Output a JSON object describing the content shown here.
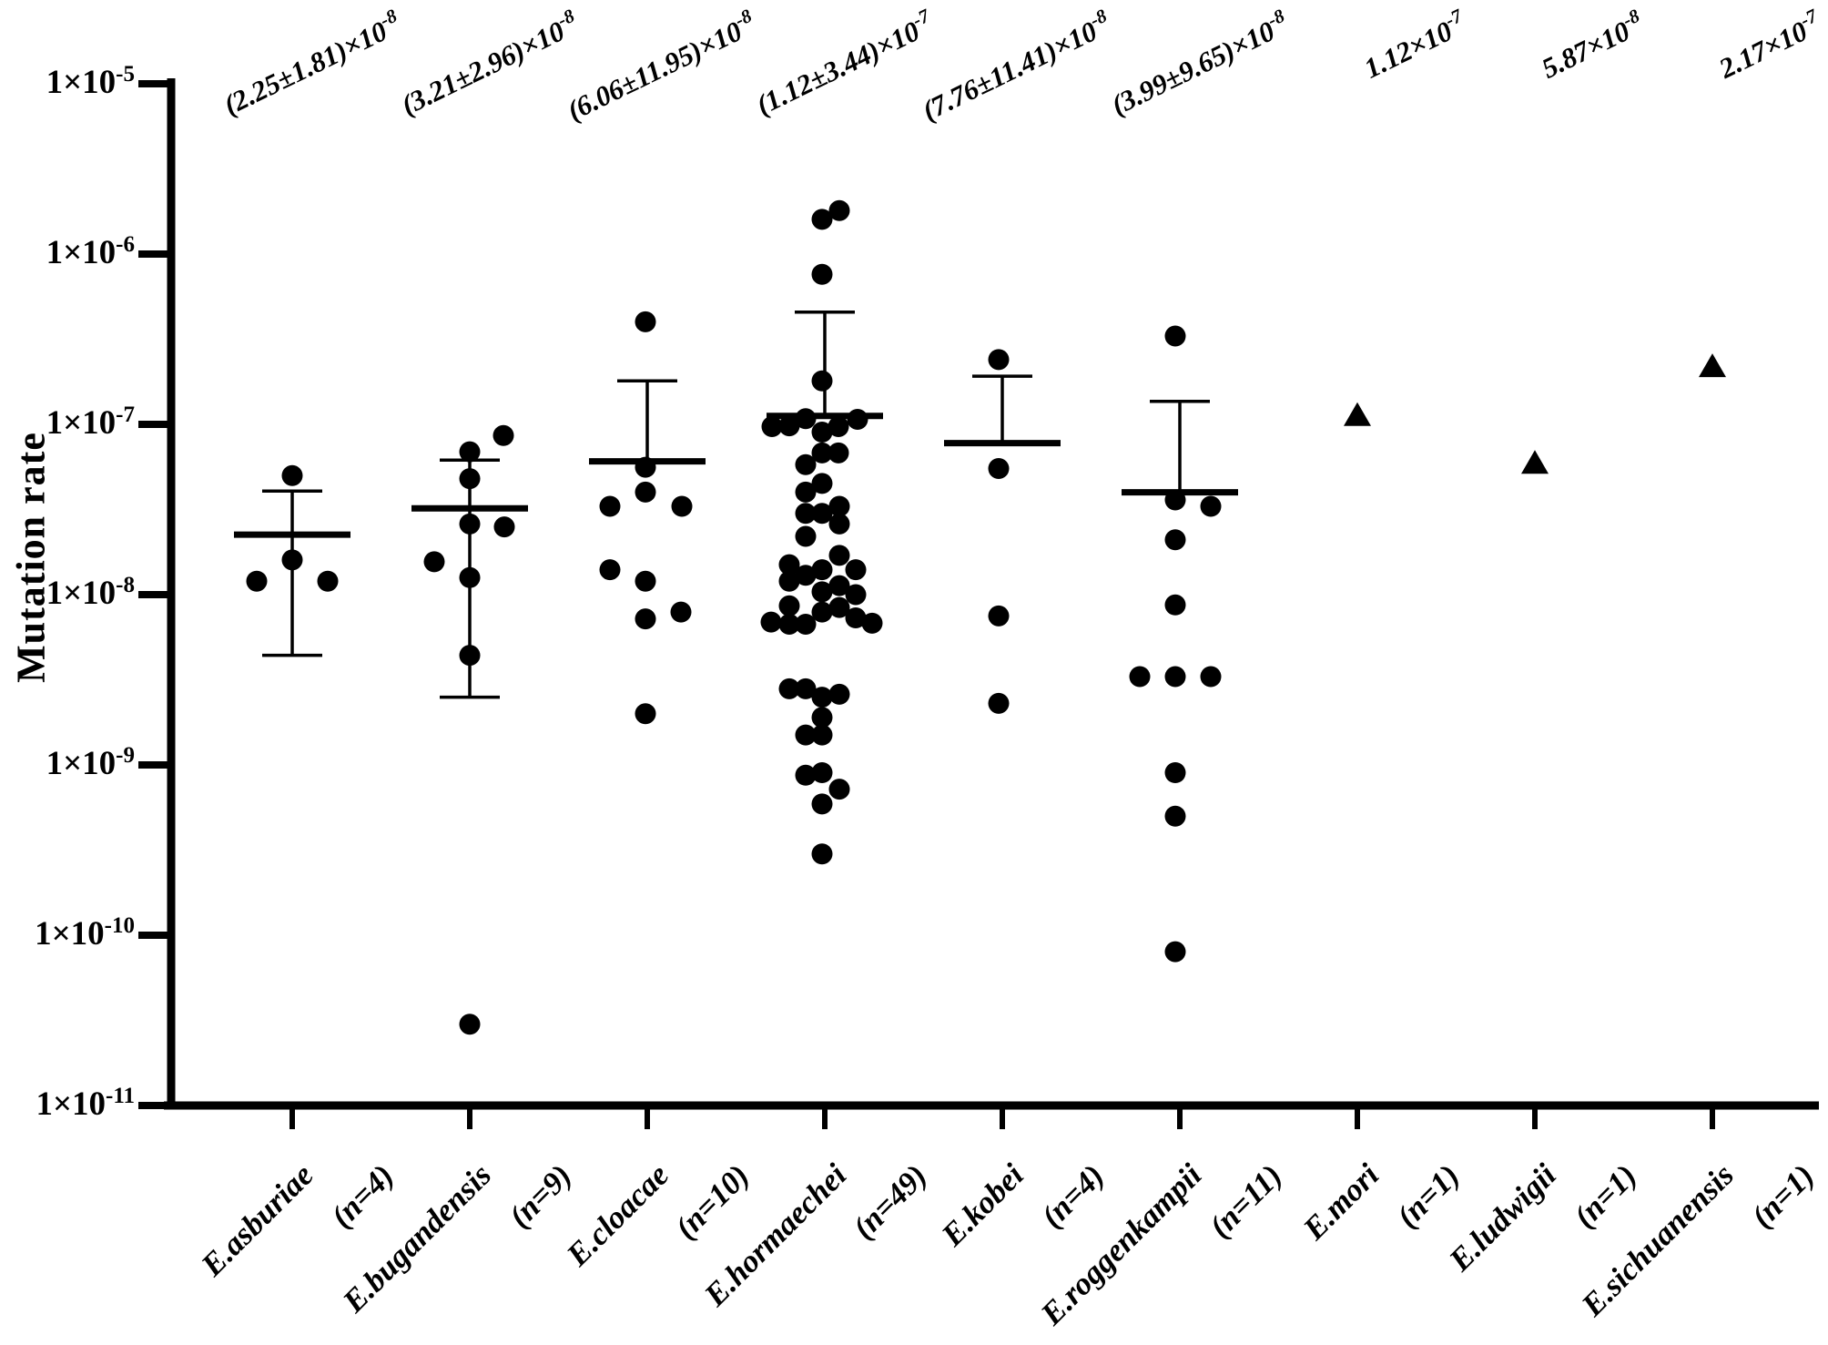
{
  "figure": {
    "background": "#ffffff",
    "ink_color": "#000000"
  },
  "chart_data": {
    "type": "scatter",
    "title": "",
    "xlabel": "",
    "ylabel": "Mutation rate",
    "y_scale": "log",
    "ylim": [
      1e-11,
      1e-05
    ],
    "grid": false,
    "legend": "none",
    "y_tick_base": "1×10",
    "y_tick_exponents": [
      "-5",
      "-6",
      "-7",
      "-8",
      "-9",
      "-10",
      "-11"
    ],
    "series": [
      {
        "name": "E.asburiae",
        "n_label": "(n=4)",
        "n": 4,
        "marker": "circle",
        "annotation_base": "(2.25±1.81)×10",
        "annotation_exp": "-8",
        "mean": 2.25e-08,
        "sd": 1.81e-08,
        "points": [
          [
            5e-08,
            0
          ],
          [
            1.6e-08,
            0
          ],
          [
            1.2e-08,
            -39
          ],
          [
            1.2e-08,
            39
          ]
        ]
      },
      {
        "name": "E.bugandensis",
        "n_label": "(n=9)",
        "n": 9,
        "marker": "circle",
        "annotation_base": "(3.21±2.96)×10",
        "annotation_exp": "-8",
        "mean": 3.21e-08,
        "sd": 2.96e-08,
        "points": [
          [
            8.6e-08,
            37
          ],
          [
            6.9e-08,
            0
          ],
          [
            4.8e-08,
            0
          ],
          [
            2.6e-08,
            0
          ],
          [
            2.5e-08,
            38
          ],
          [
            1.56e-08,
            -39
          ],
          [
            1.26e-08,
            0
          ],
          [
            4.4e-09,
            0
          ],
          [
            3e-11,
            0
          ]
        ]
      },
      {
        "name": "E.cloacae",
        "n_label": "(n=10)",
        "n": 10,
        "marker": "circle",
        "annotation_base": "(6.06±11.95)×10",
        "annotation_exp": "-8",
        "mean": 6.06e-08,
        "sd": 1.195e-07,
        "points": [
          [
            4e-07,
            -2
          ],
          [
            5.6e-08,
            -2
          ],
          [
            4e-08,
            -2
          ],
          [
            3.3e-08,
            -41
          ],
          [
            3.3e-08,
            38
          ],
          [
            1.4e-08,
            -41
          ],
          [
            1.2e-08,
            -2
          ],
          [
            7.9e-09,
            37
          ],
          [
            7.2e-09,
            -2
          ],
          [
            2e-09,
            -2
          ]
        ]
      },
      {
        "name": "E.hormaechei",
        "n_label": "(n=49)",
        "n": 49,
        "marker": "circle",
        "annotation_base": "(1.12±3.44)×10",
        "annotation_exp": "-7",
        "mean": 1.12e-07,
        "sd": 3.44e-07,
        "points": [
          [
            1.8e-06,
            16
          ],
          [
            1.6e-06,
            -3
          ],
          [
            7.6e-07,
            -3
          ],
          [
            1.8e-07,
            -3
          ],
          [
            1.08e-07,
            -21
          ],
          [
            1.07e-07,
            36
          ],
          [
            9.8e-08,
            -39
          ],
          [
            9.7e-08,
            -58
          ],
          [
            9.7e-08,
            15
          ],
          [
            9e-08,
            -3
          ],
          [
            6.8e-08,
            -3
          ],
          [
            6.8e-08,
            15
          ],
          [
            5.8e-08,
            -21
          ],
          [
            4.5e-08,
            -3
          ],
          [
            4e-08,
            -21
          ],
          [
            3.3e-08,
            16
          ],
          [
            3e-08,
            -21
          ],
          [
            3e-08,
            -3
          ],
          [
            2.6e-08,
            16
          ],
          [
            2.2e-08,
            -21
          ],
          [
            1.7e-08,
            16
          ],
          [
            1.5e-08,
            -39
          ],
          [
            1.4e-08,
            -3
          ],
          [
            1.4e-08,
            34
          ],
          [
            1.3e-08,
            -21
          ],
          [
            1.2e-08,
            -39
          ],
          [
            1.13e-08,
            16
          ],
          [
            1.04e-08,
            -3
          ],
          [
            1e-08,
            34
          ],
          [
            8.6e-09,
            -39
          ],
          [
            8.4e-09,
            16
          ],
          [
            7.9e-09,
            -3
          ],
          [
            7.3e-09,
            34
          ],
          [
            6.9e-09,
            -59
          ],
          [
            6.7e-09,
            -39
          ],
          [
            6.7e-09,
            -21
          ],
          [
            6.8e-09,
            52
          ],
          [
            2.8e-09,
            -39
          ],
          [
            2.8e-09,
            -21
          ],
          [
            2.6e-09,
            16
          ],
          [
            2.5e-09,
            -3
          ],
          [
            1.9e-09,
            -3
          ],
          [
            1.5e-09,
            -21
          ],
          [
            1.5e-09,
            -3
          ],
          [
            9e-10,
            -3
          ],
          [
            8.7e-10,
            -21
          ],
          [
            7.2e-10,
            16
          ],
          [
            5.9e-10,
            -3
          ],
          [
            3e-10,
            -3
          ]
        ]
      },
      {
        "name": "E.kobei",
        "n_label": "(n=4)",
        "n": 4,
        "marker": "circle",
        "annotation_base": "(7.76±11.41)×10",
        "annotation_exp": "-8",
        "mean": 7.76e-08,
        "sd": 1.141e-07,
        "points": [
          [
            2.4e-07,
            -4
          ],
          [
            5.5e-08,
            -4
          ],
          [
            7.5e-09,
            -4
          ],
          [
            2.3e-09,
            -4
          ]
        ]
      },
      {
        "name": "E.roggenkampii",
        "n_label": "(n=11)",
        "n": 11,
        "marker": "circle",
        "annotation_base": "(3.99±9.65)×10",
        "annotation_exp": "-8",
        "mean": 3.99e-08,
        "sd": 9.65e-08,
        "points": [
          [
            3.3e-07,
            -5
          ],
          [
            3.6e-08,
            -5
          ],
          [
            3.3e-08,
            34
          ],
          [
            2.1e-08,
            -5
          ],
          [
            8.7e-09,
            -5
          ],
          [
            3.3e-09,
            -44
          ],
          [
            3.3e-09,
            -5
          ],
          [
            3.3e-09,
            34
          ],
          [
            9e-10,
            -5
          ],
          [
            5e-10,
            -5
          ],
          [
            8e-11,
            -5
          ]
        ]
      },
      {
        "name": "E.mori",
        "n_label": "(n=1)",
        "n": 1,
        "marker": "triangle",
        "annotation_base": "1.12×10",
        "annotation_exp": "-7",
        "mean": null,
        "sd": null,
        "points": [
          [
            1.12e-07,
            0
          ]
        ]
      },
      {
        "name": "E.ludwigii",
        "n_label": "(n=1)",
        "n": 1,
        "marker": "triangle",
        "annotation_base": "5.87×10",
        "annotation_exp": "-8",
        "mean": null,
        "sd": null,
        "points": [
          [
            5.87e-08,
            0
          ]
        ]
      },
      {
        "name": "E.sichuanensis",
        "n_label": "(n=1)",
        "n": 1,
        "marker": "triangle",
        "annotation_base": "2.17×10",
        "annotation_exp": "-7",
        "mean": null,
        "sd": null,
        "points": [
          [
            2.17e-07,
            0
          ]
        ]
      }
    ]
  }
}
